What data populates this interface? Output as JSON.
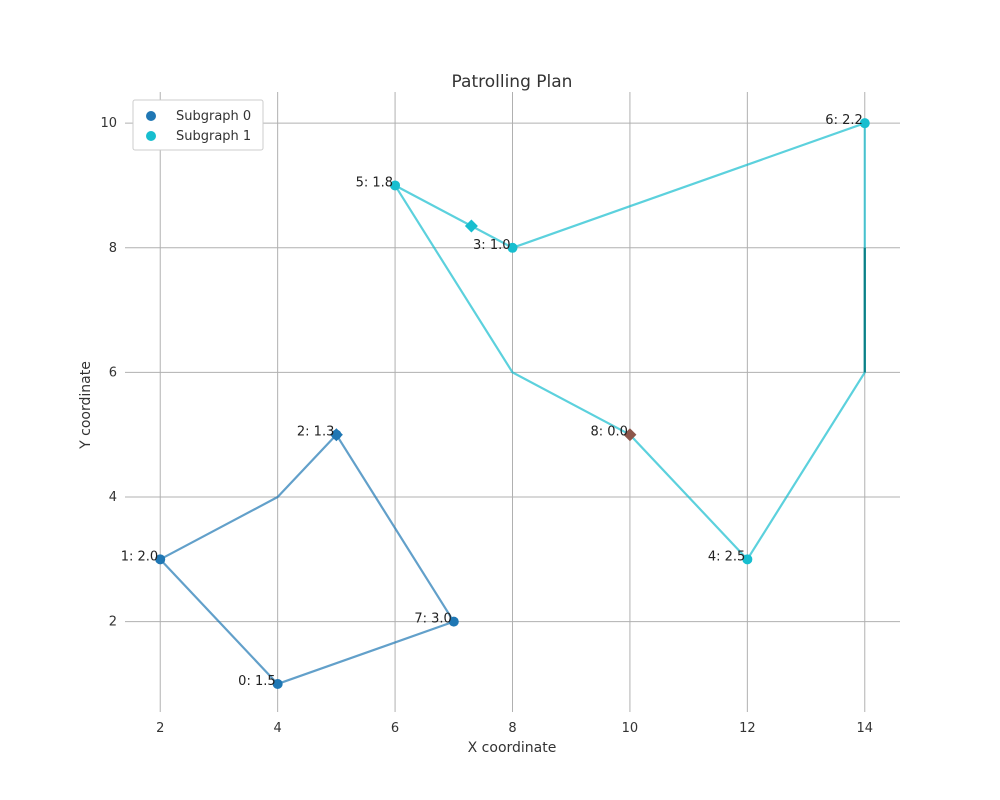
{
  "chart_data": {
    "type": "scatter",
    "title": "Patrolling Plan",
    "xlabel": "X coordinate",
    "ylabel": "Y coordinate",
    "xlim": [
      1.4,
      14.6
    ],
    "ylim": [
      0.55,
      10.5
    ],
    "xticks": [
      2,
      4,
      6,
      8,
      10,
      12,
      14
    ],
    "yticks": [
      2,
      4,
      6,
      8,
      10
    ],
    "grid": true,
    "legend_position": "top-left",
    "nodes": [
      {
        "id": 0,
        "x": 4,
        "y": 1,
        "label": "0: 1.5",
        "group": 0
      },
      {
        "id": 1,
        "x": 2,
        "y": 3,
        "label": "1: 2.0",
        "group": 0
      },
      {
        "id": 2,
        "x": 5,
        "y": 5,
        "label": "2: 1.3",
        "group": 0
      },
      {
        "id": 3,
        "x": 8,
        "y": 8,
        "label": "3: 1.0",
        "group": 1
      },
      {
        "id": 4,
        "x": 12,
        "y": 3,
        "label": "4: 2.5",
        "group": 1
      },
      {
        "id": 5,
        "x": 6,
        "y": 9,
        "label": "5: 1.8",
        "group": 1
      },
      {
        "id": 6,
        "x": 14,
        "y": 10,
        "label": "6: 2.2",
        "group": 1
      },
      {
        "id": 7,
        "x": 7,
        "y": 2,
        "label": "7: 3.0",
        "group": 0
      },
      {
        "id": 8,
        "x": 10,
        "y": 5,
        "label": "8: 0.0",
        "group": "depot"
      }
    ],
    "series": [
      {
        "name": "Subgraph 0",
        "color": "#1f77b4",
        "path": [
          [
            4,
            1
          ],
          [
            2,
            3
          ],
          [
            4,
            4
          ],
          [
            5,
            5
          ],
          [
            7,
            2
          ],
          [
            4,
            1
          ]
        ]
      },
      {
        "name": "Subgraph 1",
        "color": "#17becf",
        "path": [
          [
            10,
            5
          ],
          [
            8,
            6
          ],
          [
            6,
            9
          ],
          [
            8,
            8
          ],
          [
            14,
            10
          ],
          [
            14,
            8
          ],
          [
            14,
            6
          ],
          [
            12,
            3
          ],
          [
            10,
            5
          ]
        ]
      }
    ],
    "markers": [
      {
        "type": "diamond",
        "x": 5,
        "y": 5,
        "color": "#1f77b4"
      },
      {
        "type": "diamond",
        "x": 7.3,
        "y": 8.35,
        "color": "#17becf"
      },
      {
        "type": "diamond",
        "x": 10,
        "y": 5,
        "color": "#8c564b"
      }
    ],
    "dark_segment": {
      "from": [
        14,
        8
      ],
      "to": [
        14,
        6
      ],
      "color": "#0b7f85"
    }
  }
}
